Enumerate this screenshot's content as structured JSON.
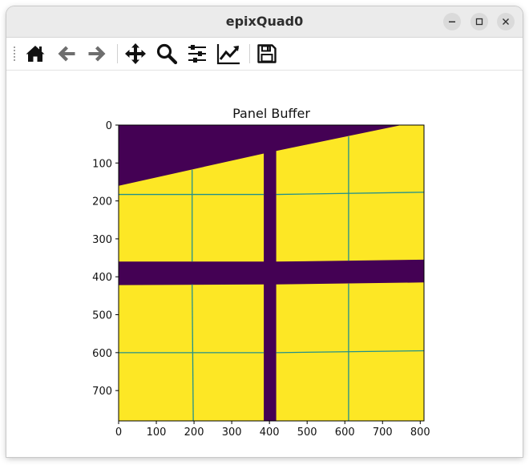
{
  "window": {
    "title": "epixQuad0",
    "controls": [
      "minimize-icon",
      "maximize-icon",
      "close-icon"
    ]
  },
  "toolbar": {
    "buttons": [
      {
        "name": "home",
        "icon": "home-icon"
      },
      {
        "name": "back",
        "icon": "arrow-left-icon"
      },
      {
        "name": "forward",
        "icon": "arrow-right-icon"
      },
      {
        "name": "pan",
        "icon": "move-icon"
      },
      {
        "name": "zoom",
        "icon": "magnifier-icon"
      },
      {
        "name": "configure-subplots",
        "icon": "sliders-icon"
      },
      {
        "name": "edit-axis",
        "icon": "line-chart-icon"
      },
      {
        "name": "save",
        "icon": "floppy-disk-icon"
      }
    ]
  },
  "plot": {
    "title": "Panel Buffer",
    "colors": {
      "background": "#440154",
      "panel": "#fde725",
      "gap": "#21918c"
    }
  },
  "chart_data": {
    "type": "heatmap",
    "title": "Panel Buffer",
    "xlabel": "",
    "ylabel": "",
    "colormap": "viridis",
    "xlim": [
      0,
      810
    ],
    "ylim": [
      780,
      0
    ],
    "xticks": [
      0,
      100,
      200,
      300,
      400,
      500,
      600,
      700,
      800
    ],
    "yticks": [
      0,
      100,
      200,
      300,
      400,
      500,
      600,
      700
    ],
    "regions": [
      {
        "label": "panel",
        "polygon": [
          [
            0,
            160
          ],
          [
            385,
            75
          ],
          [
            385,
            360
          ],
          [
            0,
            360
          ]
        ]
      },
      {
        "label": "panel",
        "polygon": [
          [
            418,
            68
          ],
          [
            750,
            0
          ],
          [
            810,
            0
          ],
          [
            810,
            355
          ],
          [
            418,
            360
          ]
        ]
      },
      {
        "label": "panel",
        "polygon": [
          [
            0,
            422
          ],
          [
            385,
            420
          ],
          [
            385,
            780
          ],
          [
            0,
            780
          ]
        ]
      },
      {
        "label": "panel",
        "polygon": [
          [
            418,
            420
          ],
          [
            810,
            415
          ],
          [
            810,
            780
          ],
          [
            418,
            780
          ]
        ]
      }
    ],
    "gridlines": [
      {
        "from": [
          0,
          183
        ],
        "to": [
          385,
          183
        ]
      },
      {
        "from": [
          418,
          183
        ],
        "to": [
          810,
          177
        ]
      },
      {
        "from": [
          0,
          600
        ],
        "to": [
          385,
          600
        ]
      },
      {
        "from": [
          418,
          600
        ],
        "to": [
          810,
          595
        ]
      },
      {
        "from": [
          195,
          118
        ],
        "to": [
          195,
          360
        ]
      },
      {
        "from": [
          195,
          420
        ],
        "to": [
          198,
          780
        ]
      },
      {
        "from": [
          610,
          30
        ],
        "to": [
          610,
          358
        ]
      },
      {
        "from": [
          610,
          418
        ],
        "to": [
          610,
          780
        ]
      }
    ]
  }
}
